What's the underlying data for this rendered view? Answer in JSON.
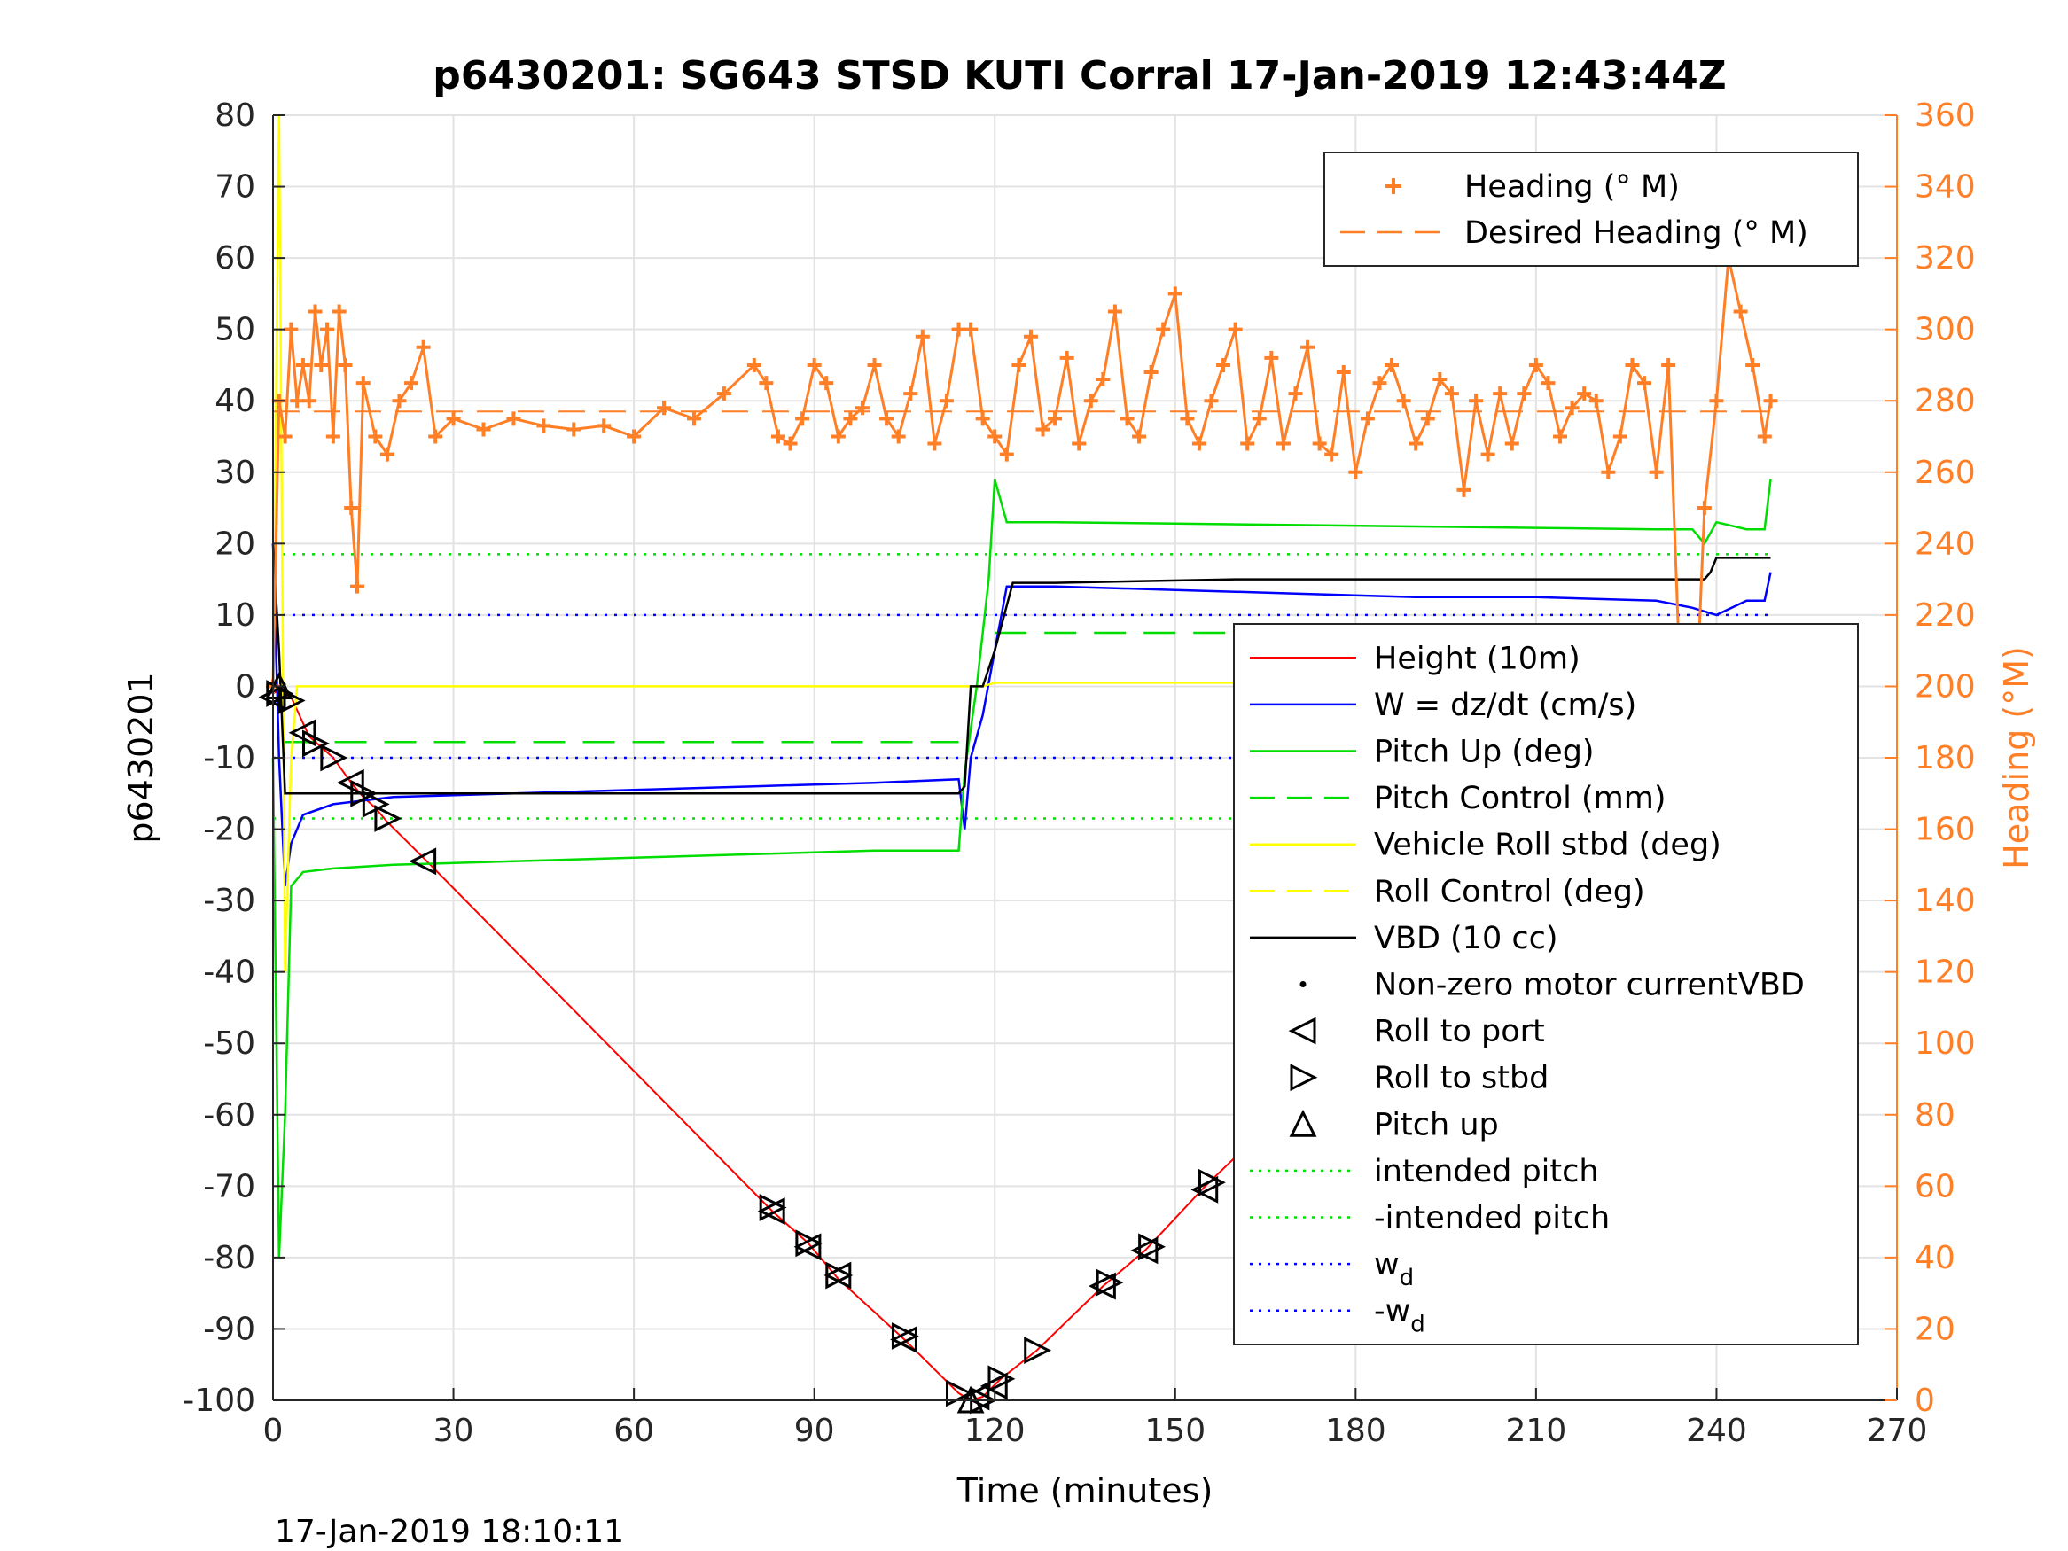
{
  "chart_data": {
    "type": "line",
    "title": "p6430201: SG643 STSD KUTI Corral 17-Jan-2019 12:43:44Z",
    "xlabel": "Time (minutes)",
    "ylabel_left": "p6430201",
    "ylabel_right": "Heading (°M)",
    "timestamp": "17-Jan-2019 18:10:11",
    "xlim": [
      0,
      270
    ],
    "ylim_left": [
      -100,
      80
    ],
    "ylim_right": [
      0,
      360
    ],
    "x_ticks": [
      0,
      30,
      60,
      90,
      120,
      150,
      180,
      210,
      240,
      270
    ],
    "y_ticks_left": [
      80,
      70,
      60,
      50,
      40,
      30,
      20,
      10,
      0,
      -10,
      -20,
      -30,
      -40,
      -50,
      -60,
      -70,
      -80,
      -90,
      -100
    ],
    "y_ticks_right": [
      360,
      340,
      320,
      300,
      280,
      260,
      240,
      220,
      200,
      180,
      160,
      140,
      120,
      100,
      80,
      60,
      40,
      20,
      0
    ],
    "grid": true,
    "legend_top_right": [
      {
        "label": "Heading (° M)",
        "color": "#ff7f27",
        "style": "plus"
      },
      {
        "label": "Desired Heading (° M)",
        "color": "#ff7f27",
        "style": "dash"
      }
    ],
    "legend_main": [
      {
        "label": "Height (10m)",
        "color": "#ff0000",
        "style": "solid"
      },
      {
        "label": "W = dz/dt (cm/s)",
        "color": "#0000ff",
        "style": "solid"
      },
      {
        "label": "Pitch Up (deg)",
        "color": "#00dd00",
        "style": "solid"
      },
      {
        "label": "Pitch Control (mm)",
        "color": "#00dd00",
        "style": "dash"
      },
      {
        "label": "Vehicle Roll stbd (deg)",
        "color": "#ffff00",
        "style": "solid"
      },
      {
        "label": "Roll Control (deg)",
        "color": "#ffff00",
        "style": "dash"
      },
      {
        "label": "VBD (10 cc)",
        "color": "#000000",
        "style": "solid"
      },
      {
        "label": "Non-zero motor currentVBD",
        "color": "#000000",
        "style": "dot"
      },
      {
        "label": "Roll to port",
        "color": "#000000",
        "style": "tri-left"
      },
      {
        "label": "Roll to stbd",
        "color": "#000000",
        "style": "tri-right"
      },
      {
        "label": "Pitch up",
        "color": "#000000",
        "style": "tri-up"
      },
      {
        "label": "intended pitch",
        "color": "#00dd00",
        "style": "dotted"
      },
      {
        "label": "-intended pitch",
        "color": "#00dd00",
        "style": "dotted"
      },
      {
        "label": "w",
        "sub": "d",
        "color": "#0000ff",
        "style": "dotted"
      },
      {
        "label": "-w",
        "sub": "d",
        "color": "#0000ff",
        "style": "dotted"
      }
    ],
    "series": [
      {
        "name": "Height (10m)",
        "axis": "left",
        "color": "#ff0000",
        "x": [
          0,
          1,
          2,
          3,
          6,
          8,
          10,
          13,
          15,
          17,
          19,
          25,
          83,
          89,
          94,
          105,
          114,
          116,
          118,
          121,
          127,
          138,
          145,
          155,
          171,
          183,
          198,
          204,
          219,
          227,
          230,
          232,
          234,
          236,
          238,
          240,
          242,
          244,
          246,
          248,
          249
        ],
        "y": [
          -1,
          -0.5,
          -1,
          -1.5,
          -7,
          -8.5,
          -10,
          -13.5,
          -15.5,
          -17,
          -19,
          -24,
          -73.5,
          -78,
          -83,
          -91.5,
          -99,
          -100,
          -99.5,
          -97,
          -93,
          -84,
          -79,
          -70,
          -57,
          -48,
          -36,
          -32,
          -20.5,
          -14.5,
          -12,
          -10.5,
          -9,
          -7.5,
          -6,
          -5,
          -4,
          -3,
          -1.5,
          -0.5,
          0
        ]
      },
      {
        "name": "W = dz/dt (cm/s)",
        "axis": "left",
        "color": "#0000ff",
        "x": [
          0,
          1,
          2,
          3,
          5,
          10,
          20,
          40,
          60,
          80,
          100,
          114,
          115,
          116,
          118,
          120,
          122,
          130,
          150,
          170,
          190,
          210,
          230,
          236,
          240,
          245,
          248,
          249
        ],
        "y": [
          20,
          -10,
          -28,
          -22,
          -18,
          -16.5,
          -15.5,
          -15,
          -14.5,
          -14,
          -13.5,
          -13,
          -20,
          -10,
          -4,
          5,
          14,
          14,
          13.5,
          13,
          12.5,
          12.5,
          12,
          11,
          10,
          12,
          12,
          16
        ]
      },
      {
        "name": "Pitch Up (deg)",
        "axis": "left",
        "color": "#00dd00",
        "x": [
          0,
          1,
          2,
          3,
          5,
          10,
          20,
          40,
          60,
          80,
          100,
          114,
          115,
          117,
          119,
          120,
          122,
          130,
          150,
          170,
          190,
          210,
          230,
          236,
          238,
          240,
          245,
          248,
          249
        ],
        "y": [
          -10,
          -80,
          -60,
          -28,
          -26,
          -25.5,
          -25,
          -24.5,
          -24,
          -23.5,
          -23,
          -23,
          -12,
          0,
          15,
          29,
          23,
          23,
          22.8,
          22.6,
          22.4,
          22.2,
          22,
          22,
          20,
          23,
          22,
          22,
          29
        ]
      },
      {
        "name": "Vehicle Roll stbd (deg)",
        "axis": "left",
        "color": "#ffff00",
        "x": [
          0,
          1,
          2,
          3,
          4,
          6,
          10,
          20,
          40,
          60,
          80,
          90,
          100,
          110,
          116,
          118,
          120,
          130,
          150,
          170,
          190,
          210,
          230,
          236,
          240,
          245,
          249
        ],
        "y": [
          0,
          80,
          -40,
          -10,
          0,
          0,
          0,
          0,
          0,
          0,
          0,
          0,
          0,
          0,
          0,
          0,
          0.5,
          0.5,
          0.5,
          0.5,
          0.5,
          0.5,
          0.5,
          0,
          0,
          0,
          0
        ]
      },
      {
        "name": "VBD (10 cc)",
        "axis": "left",
        "color": "#000000",
        "x": [
          0,
          1,
          2,
          3,
          20,
          60,
          100,
          114,
          115,
          116,
          118,
          120,
          123,
          130,
          160,
          200,
          238,
          239,
          240,
          249
        ],
        "y": [
          20,
          5,
          -15,
          -15,
          -15,
          -15,
          -15,
          -15,
          -14,
          0,
          0,
          5,
          14.5,
          14.5,
          15,
          15,
          15,
          16,
          18,
          18
        ]
      },
      {
        "name": "Heading (° M)",
        "axis": "right",
        "color": "#ff7f27",
        "x": [
          0,
          1,
          2,
          3,
          4,
          5,
          6,
          7,
          8,
          9,
          10,
          11,
          12,
          13,
          14,
          15,
          17,
          19,
          21,
          23,
          25,
          27,
          30,
          35,
          40,
          45,
          50,
          55,
          60,
          65,
          70,
          75,
          80,
          82,
          84,
          86,
          88,
          90,
          92,
          94,
          96,
          98,
          100,
          102,
          104,
          106,
          108,
          110,
          112,
          114,
          116,
          118,
          120,
          122,
          124,
          126,
          128,
          130,
          132,
          134,
          136,
          138,
          140,
          142,
          144,
          146,
          148,
          150,
          152,
          154,
          156,
          158,
          160,
          162,
          164,
          166,
          168,
          170,
          172,
          174,
          176,
          178,
          180,
          182,
          184,
          186,
          188,
          190,
          192,
          194,
          196,
          198,
          200,
          202,
          204,
          206,
          208,
          210,
          212,
          214,
          216,
          218,
          220,
          222,
          224,
          226,
          228,
          230,
          232,
          234,
          236,
          238,
          240,
          242,
          244,
          246,
          248,
          249
        ],
        "y": [
          200,
          280,
          270,
          300,
          280,
          290,
          280,
          305,
          290,
          300,
          270,
          305,
          290,
          250,
          228,
          285,
          270,
          265,
          280,
          285,
          295,
          270,
          275,
          272,
          275,
          273,
          272,
          273,
          270,
          278,
          275,
          282,
          290,
          285,
          270,
          268,
          275,
          290,
          285,
          270,
          275,
          278,
          290,
          275,
          270,
          282,
          298,
          268,
          280,
          300,
          300,
          275,
          270,
          265,
          290,
          298,
          272,
          275,
          292,
          268,
          280,
          286,
          305,
          275,
          270,
          288,
          300,
          310,
          275,
          268,
          280,
          290,
          300,
          268,
          275,
          292,
          268,
          282,
          295,
          268,
          265,
          288,
          260,
          275,
          285,
          290,
          280,
          268,
          275,
          286,
          282,
          255,
          280,
          265,
          282,
          268,
          282,
          290,
          285,
          270,
          278,
          282,
          280,
          260,
          270,
          290,
          285,
          260,
          290,
          200,
          170,
          250,
          280,
          320,
          305,
          290,
          270,
          280
        ]
      },
      {
        "name": "Desired Heading (° M)",
        "axis": "right",
        "color": "#ff7f27",
        "x": [
          0,
          249
        ],
        "y": [
          277,
          277
        ]
      }
    ],
    "reference_lines_left": [
      {
        "name": "intended pitch",
        "y": 18.5,
        "color": "#00dd00"
      },
      {
        "name": "-intended pitch",
        "y": -18.5,
        "color": "#00dd00"
      },
      {
        "name": "w_d",
        "y": 10,
        "color": "#0000ff"
      },
      {
        "name": "-w_d",
        "y": -10,
        "color": "#0000ff"
      }
    ],
    "pitch_control": [
      {
        "x": [
          2,
          114
        ],
        "y": -7.8
      },
      {
        "x": [
          120,
          249
        ],
        "y": 7.5
      }
    ],
    "markers_roll_port": [
      [
        0,
        -1.5
      ],
      [
        5,
        -6.5
      ],
      [
        13,
        -13.5
      ],
      [
        25,
        -24.5
      ],
      [
        83,
        -73.5
      ],
      [
        89,
        -78.5
      ],
      [
        94,
        -82.5
      ],
      [
        105,
        -91.5
      ],
      [
        117,
        -99.5
      ],
      [
        120,
        -98
      ],
      [
        138,
        -84
      ],
      [
        145,
        -79
      ],
      [
        155,
        -70.5
      ],
      [
        171,
        -57.5
      ],
      [
        183,
        -48.5
      ],
      [
        198,
        -36.5
      ],
      [
        204,
        -32
      ],
      [
        219,
        -20.5
      ],
      [
        227,
        -14.5
      ],
      [
        232,
        -11
      ],
      [
        236,
        -8
      ],
      [
        240,
        -5.5
      ],
      [
        244,
        -3
      ],
      [
        248,
        -0.5
      ]
    ],
    "markers_roll_stbd": [
      [
        1,
        -1
      ],
      [
        3,
        -2
      ],
      [
        7,
        -8
      ],
      [
        10,
        -10
      ],
      [
        15,
        -15
      ],
      [
        17,
        -16.5
      ],
      [
        19,
        -18.5
      ],
      [
        83,
        -73
      ],
      [
        89,
        -78
      ],
      [
        94,
        -82.5
      ],
      [
        105,
        -91
      ],
      [
        114,
        -99
      ],
      [
        118,
        -100
      ],
      [
        121,
        -97
      ],
      [
        127,
        -93
      ],
      [
        139,
        -83.5
      ],
      [
        146,
        -78.5
      ],
      [
        156,
        -69.5
      ],
      [
        172,
        -56.5
      ],
      [
        184,
        -48
      ],
      [
        199,
        -35.5
      ],
      [
        205,
        -31
      ],
      [
        220,
        -20
      ],
      [
        228,
        -13.5
      ],
      [
        231,
        -11.5
      ],
      [
        234,
        -9.5
      ],
      [
        238,
        -6.5
      ],
      [
        242,
        -4.5
      ],
      [
        246,
        -2
      ],
      [
        249,
        0
      ]
    ],
    "markers_pitch_up": [
      [
        1,
        0
      ],
      [
        116,
        -100
      ],
      [
        249,
        0
      ]
    ]
  }
}
